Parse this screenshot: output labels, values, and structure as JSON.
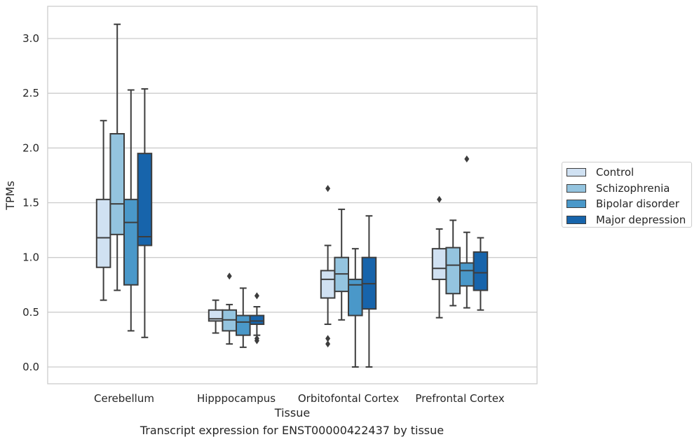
{
  "caption": "Transcript expression for ENST00000422437 by tissue",
  "chart_data": {
    "type": "box",
    "title": "",
    "xlabel": "Tissue",
    "ylabel": "TPMs",
    "ylim": [
      -0.15,
      3.3
    ],
    "yticks": [
      "0.0",
      "0.5",
      "1.0",
      "1.5",
      "2.0",
      "2.5",
      "3.0"
    ],
    "grid": "horizontal",
    "legend_position": "right",
    "categories": [
      "Cerebellum",
      "Hipppocampus",
      "Orbitofontal Cortex",
      "Prefrontal Cortex"
    ],
    "series": [
      {
        "name": "Control",
        "color": "#d0e1f2",
        "boxes": [
          {
            "whislo": 0.61,
            "q1": 0.91,
            "med": 1.18,
            "q3": 1.53,
            "whishi": 2.25,
            "fliers": []
          },
          {
            "whislo": 0.31,
            "q1": 0.42,
            "med": 0.44,
            "q3": 0.52,
            "whishi": 0.61,
            "fliers": []
          },
          {
            "whislo": 0.39,
            "q1": 0.63,
            "med": 0.8,
            "q3": 0.88,
            "whishi": 1.11,
            "fliers": [
              1.63,
              0.26,
              0.21
            ]
          },
          {
            "whislo": 0.45,
            "q1": 0.8,
            "med": 0.9,
            "q3": 1.08,
            "whishi": 1.26,
            "fliers": [
              1.53
            ]
          }
        ]
      },
      {
        "name": "Schizophrenia",
        "color": "#94c4df",
        "boxes": [
          {
            "whislo": 0.7,
            "q1": 1.21,
            "med": 1.49,
            "q3": 2.13,
            "whishi": 3.13,
            "fliers": []
          },
          {
            "whislo": 0.21,
            "q1": 0.33,
            "med": 0.43,
            "q3": 0.52,
            "whishi": 0.57,
            "fliers": [
              0.83
            ]
          },
          {
            "whislo": 0.43,
            "q1": 0.69,
            "med": 0.85,
            "q3": 1.0,
            "whishi": 1.44,
            "fliers": []
          },
          {
            "whislo": 0.56,
            "q1": 0.67,
            "med": 0.93,
            "q3": 1.09,
            "whishi": 1.34,
            "fliers": []
          }
        ]
      },
      {
        "name": "Bipolar disorder",
        "color": "#4a98c9",
        "boxes": [
          {
            "whislo": 0.33,
            "q1": 0.75,
            "med": 1.32,
            "q3": 1.53,
            "whishi": 2.53,
            "fliers": []
          },
          {
            "whislo": 0.18,
            "q1": 0.29,
            "med": 0.41,
            "q3": 0.47,
            "whishi": 0.72,
            "fliers": []
          },
          {
            "whislo": 0.0,
            "q1": 0.47,
            "med": 0.75,
            "q3": 0.8,
            "whishi": 1.08,
            "fliers": []
          },
          {
            "whislo": 0.54,
            "q1": 0.74,
            "med": 0.88,
            "q3": 0.95,
            "whishi": 1.23,
            "fliers": [
              1.9
            ]
          }
        ]
      },
      {
        "name": "Major depression",
        "color": "#1764ab",
        "boxes": [
          {
            "whislo": 0.27,
            "q1": 1.11,
            "med": 1.19,
            "q3": 1.95,
            "whishi": 2.54,
            "fliers": []
          },
          {
            "whislo": 0.29,
            "q1": 0.39,
            "med": 0.42,
            "q3": 0.47,
            "whishi": 0.55,
            "fliers": [
              0.65,
              0.26,
              0.24
            ]
          },
          {
            "whislo": 0.0,
            "q1": 0.53,
            "med": 0.76,
            "q3": 1.0,
            "whishi": 1.38,
            "fliers": []
          },
          {
            "whislo": 0.52,
            "q1": 0.7,
            "med": 0.86,
            "q3": 1.05,
            "whishi": 1.18,
            "fliers": []
          }
        ]
      }
    ]
  }
}
